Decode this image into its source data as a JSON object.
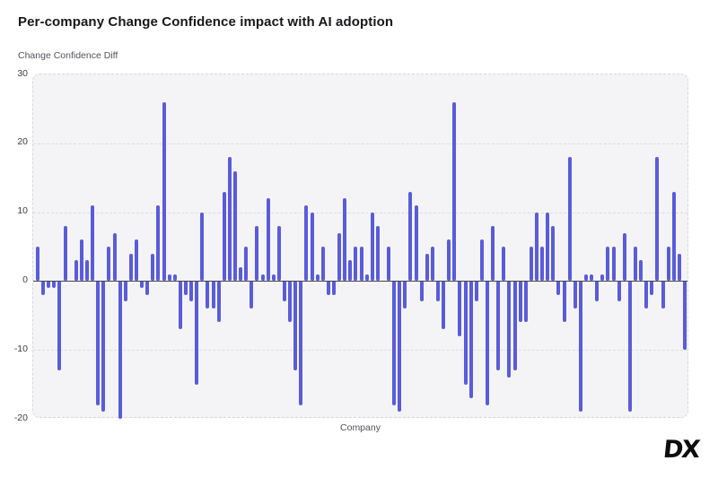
{
  "page": {
    "title": "Per-company Change Confidence impact with AI adoption"
  },
  "logo": {
    "text": "DX"
  },
  "chart_data": {
    "type": "bar",
    "title": "Per-company Change Confidence impact with AI adoption",
    "ylabel": "Change Confidence Diff",
    "xlabel": "Company",
    "ylim": [
      -20,
      30
    ],
    "yticks": [
      30,
      20,
      10,
      0,
      -10,
      -20
    ],
    "grid": "horizontal-dashed",
    "legend": "none",
    "bar_color": "#5a5cd8",
    "zero_line_color": "#43434a",
    "plot_bg_color": "#f4f4f6",
    "values": [
      5,
      -2,
      -1,
      -1,
      -13,
      8,
      0,
      3,
      6,
      3,
      11,
      -18,
      -19,
      5,
      7,
      -20,
      -3,
      4,
      6,
      -1,
      -2,
      4,
      11,
      26,
      1,
      1,
      -7,
      -2,
      -3,
      -15,
      10,
      -4,
      -4,
      -6,
      13,
      18,
      16,
      2,
      5,
      -4,
      8,
      1,
      12,
      1,
      8,
      -3,
      -6,
      -13,
      -18,
      11,
      10,
      1,
      5,
      -2,
      -2,
      7,
      12,
      3,
      5,
      5,
      1,
      10,
      8,
      0,
      5,
      -18,
      -19,
      -4,
      13,
      11,
      -3,
      4,
      5,
      -3,
      -7,
      6,
      26,
      -8,
      -15,
      -17,
      -3,
      6,
      -18,
      8,
      -13,
      5,
      -14,
      -13,
      -6,
      -6,
      5,
      10,
      5,
      10,
      8,
      -2,
      -6,
      18,
      -4,
      -19,
      1,
      1,
      -3,
      1,
      5,
      5,
      -3,
      7,
      -19,
      5,
      3,
      -4,
      -2,
      18,
      -4,
      5,
      13,
      4,
      -10
    ]
  }
}
